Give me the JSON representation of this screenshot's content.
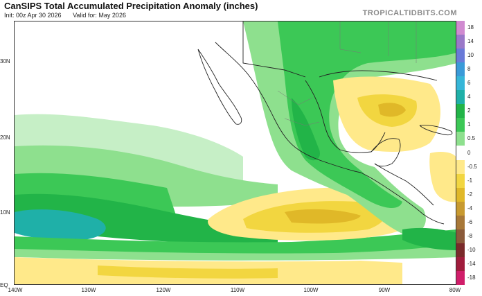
{
  "header": {
    "title": "CanSIPS Total Accumulated Precipitation Anomaly (inches)",
    "init": "Init: 00z Apr 30 2026",
    "valid": "Valid for: May 2026",
    "brand": "TROPICALTIDBITS.COM"
  },
  "map": {
    "lat_labels": [
      "30N",
      "20N",
      "10N",
      "EQ"
    ],
    "lon_labels": [
      "140W",
      "130W",
      "120W",
      "110W",
      "100W",
      "90W",
      "80W"
    ]
  },
  "colorbar": {
    "labels": [
      "18",
      "14",
      "10",
      "8",
      "6",
      "4",
      "2",
      "1",
      "0.5",
      "0",
      "-0.5",
      "-1",
      "-2",
      "-4",
      "-6",
      "-8",
      "-10",
      "-14",
      "-18"
    ],
    "colors": [
      "#d08ad0",
      "#9a78c8",
      "#6a7ad8",
      "#3a9ad8",
      "#36b6d8",
      "#1fb0a8",
      "#22b448",
      "#3cc856",
      "#8ee08e",
      "#ffffff",
      "#ffe98a",
      "#f2d640",
      "#e0b828",
      "#c89a30",
      "#a87838",
      "#8a5a3a",
      "#7a2a2a",
      "#a01c3c",
      "#d01e6a"
    ]
  }
}
